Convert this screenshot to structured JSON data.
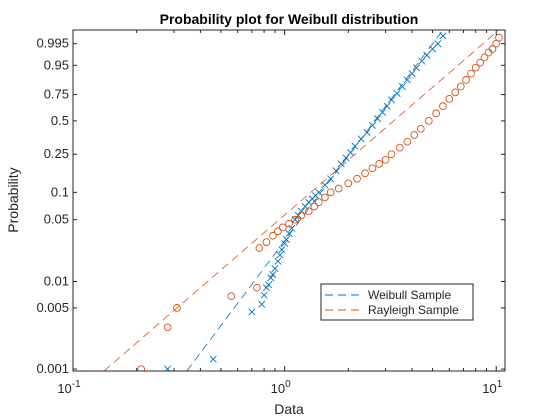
{
  "chart_data": {
    "type": "scatter",
    "title": "Probability plot for Weibull distribution",
    "xlabel": "Data",
    "ylabel": "Probability",
    "x_scale": "log",
    "y_scale": "weibull-probability",
    "xlim": [
      0.1,
      11
    ],
    "ylim": [
      0.00095,
      0.9995
    ],
    "x_ticks": [
      {
        "value": 0.1,
        "base": "10",
        "exp": "-1"
      },
      {
        "value": 1,
        "base": "10",
        "exp": "0"
      },
      {
        "value": 10,
        "base": "10",
        "exp": "1"
      }
    ],
    "y_ticks": [
      {
        "value": 0.001,
        "label": "0.001"
      },
      {
        "value": 0.005,
        "label": "0.005"
      },
      {
        "value": 0.01,
        "label": "0.01"
      },
      {
        "value": 0.05,
        "label": "0.05"
      },
      {
        "value": 0.1,
        "label": "0.1"
      },
      {
        "value": 0.25,
        "label": "0.25"
      },
      {
        "value": 0.5,
        "label": "0.5"
      },
      {
        "value": 0.75,
        "label": "0.75"
      },
      {
        "value": 0.95,
        "label": "0.95"
      },
      {
        "value": 0.995,
        "label": "0.995"
      }
    ],
    "grid": false,
    "legend_position": "lower-right",
    "series": [
      {
        "name": "Weibull Sample",
        "marker": "x",
        "color": "#0072BD",
        "fit_line": {
          "from": [
            0.345,
            0.00095
          ],
          "to": [
            5.6,
            0.9995
          ]
        },
        "points": [
          [
            0.28,
            0.001
          ],
          [
            0.46,
            0.0013
          ],
          [
            0.7,
            0.0045
          ],
          [
            0.78,
            0.0055
          ],
          [
            0.8,
            0.007
          ],
          [
            0.82,
            0.0085
          ],
          [
            0.84,
            0.0092
          ],
          [
            0.86,
            0.011
          ],
          [
            0.88,
            0.012
          ],
          [
            0.9,
            0.014
          ],
          [
            0.93,
            0.017
          ],
          [
            0.95,
            0.02
          ],
          [
            0.97,
            0.023
          ],
          [
            1.0,
            0.027
          ],
          [
            1.02,
            0.03
          ],
          [
            1.05,
            0.035
          ],
          [
            1.08,
            0.04
          ],
          [
            1.12,
            0.05
          ],
          [
            1.16,
            0.056
          ],
          [
            1.2,
            0.062
          ],
          [
            1.25,
            0.07
          ],
          [
            1.3,
            0.078
          ],
          [
            1.35,
            0.085
          ],
          [
            1.4,
            0.092
          ],
          [
            1.45,
            0.1
          ],
          [
            1.55,
            0.12
          ],
          [
            1.65,
            0.14
          ],
          [
            1.75,
            0.17
          ],
          [
            1.85,
            0.2
          ],
          [
            1.95,
            0.23
          ],
          [
            2.05,
            0.26
          ],
          [
            2.15,
            0.3
          ],
          [
            2.3,
            0.35
          ],
          [
            2.45,
            0.4
          ],
          [
            2.6,
            0.46
          ],
          [
            2.75,
            0.52
          ],
          [
            2.9,
            0.58
          ],
          [
            3.05,
            0.64
          ],
          [
            3.2,
            0.7
          ],
          [
            3.4,
            0.76
          ],
          [
            3.6,
            0.82
          ],
          [
            3.8,
            0.87
          ],
          [
            4.0,
            0.91
          ],
          [
            4.2,
            0.94
          ],
          [
            4.45,
            0.965
          ],
          [
            4.7,
            0.98
          ],
          [
            5.0,
            0.99
          ],
          [
            5.3,
            0.995
          ],
          [
            5.6,
            0.9985
          ]
        ]
      },
      {
        "name": "Rayleigh Sample",
        "marker": "o",
        "color": "#D95319",
        "fit_line": {
          "from": [
            0.14,
            0.00095
          ],
          "to": [
            10.3,
            0.9995
          ]
        },
        "points": [
          [
            0.21,
            0.001
          ],
          [
            0.28,
            0.003
          ],
          [
            0.31,
            0.005
          ],
          [
            0.56,
            0.0068
          ],
          [
            0.74,
            0.0085
          ],
          [
            0.76,
            0.024
          ],
          [
            0.82,
            0.028
          ],
          [
            0.88,
            0.033
          ],
          [
            0.93,
            0.037
          ],
          [
            0.98,
            0.041
          ],
          [
            1.05,
            0.045
          ],
          [
            1.12,
            0.05
          ],
          [
            1.2,
            0.056
          ],
          [
            1.3,
            0.062
          ],
          [
            1.38,
            0.07
          ],
          [
            1.45,
            0.078
          ],
          [
            1.55,
            0.088
          ],
          [
            1.65,
            0.1
          ],
          [
            1.8,
            0.11
          ],
          [
            2.0,
            0.125
          ],
          [
            2.2,
            0.14
          ],
          [
            2.4,
            0.16
          ],
          [
            2.6,
            0.18
          ],
          [
            2.8,
            0.2
          ],
          [
            3.0,
            0.22
          ],
          [
            3.2,
            0.25
          ],
          [
            3.5,
            0.29
          ],
          [
            3.8,
            0.33
          ],
          [
            4.1,
            0.38
          ],
          [
            4.4,
            0.43
          ],
          [
            4.8,
            0.5
          ],
          [
            5.2,
            0.57
          ],
          [
            5.6,
            0.64
          ],
          [
            6.0,
            0.71
          ],
          [
            6.4,
            0.77
          ],
          [
            6.8,
            0.82
          ],
          [
            7.2,
            0.87
          ],
          [
            7.6,
            0.91
          ],
          [
            8.0,
            0.94
          ],
          [
            8.4,
            0.96
          ],
          [
            8.8,
            0.975
          ],
          [
            9.2,
            0.985
          ],
          [
            9.6,
            0.99
          ],
          [
            10.0,
            0.995
          ],
          [
            10.3,
            0.998
          ]
        ]
      }
    ]
  }
}
